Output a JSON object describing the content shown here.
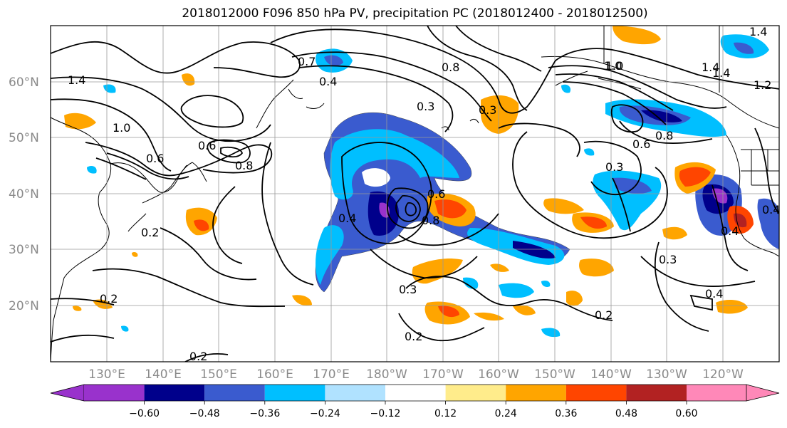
{
  "title": "2018012000 F096 850 hPa PV, precipitation PC (2018012400 - 2018012500)",
  "lat_labels": [
    "60°N",
    "50°N",
    "40°N",
    "30°N",
    "20°N"
  ],
  "lon_labels": [
    "130°E",
    "140°E",
    "150°E",
    "160°E",
    "170°E",
    "180°W",
    "170°W",
    "160°W",
    "150°W",
    "140°W",
    "130°W",
    "120°W"
  ],
  "colorbar": {
    "ticks": [
      "−0.60",
      "−0.48",
      "−0.36",
      "−0.24",
      "−0.12",
      "0.12",
      "0.24",
      "0.36",
      "0.48",
      "0.60"
    ],
    "colors": [
      "#9932cc",
      "#00008b",
      "#3a5bcf",
      "#00bfff",
      "#b0e2ff",
      "#ffffff",
      "#ffec8b",
      "#ffa500",
      "#ff4500",
      "#b22222",
      "#ff88b8"
    ]
  },
  "contour_labels": [
    "1.4",
    "1.4",
    "0.7",
    "0.4",
    "1.0",
    "1.0",
    "0.8",
    "0.3",
    "0.6",
    "0.8",
    "0.6",
    "0.4",
    "0.8",
    "0.6",
    "0.3",
    "1.2",
    "1.4",
    "1.0",
    "0.8",
    "0.6",
    "0.2",
    "0.2",
    "0.2",
    "0.4",
    "0.3",
    "0.3",
    "0.4",
    "0.2",
    "0.2",
    "1.4",
    "0.3",
    "0.4"
  ],
  "precip_colors": {
    "blue_dark": "#00008b",
    "blue_mid": "#3a5bcf",
    "cyan": "#00bfff",
    "light_blue": "#b0e2ff",
    "purple": "#9932cc",
    "yellow": "#ffec8b",
    "orange": "#ffa500",
    "red_orange": "#ff4500",
    "dark_red": "#b22222"
  }
}
